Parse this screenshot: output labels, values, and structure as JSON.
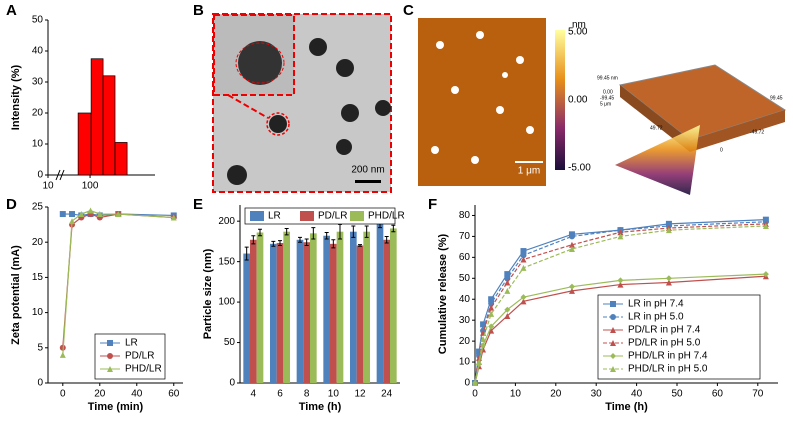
{
  "panel_labels": [
    "A",
    "B",
    "C",
    "D",
    "E",
    "F"
  ],
  "images": {
    "b_scale": "200 nm",
    "c_scale": "1 μm",
    "c_colorbar_unit": "nm",
    "c_colorbar_ticks": [
      "5.00",
      "0.00",
      "-5.00"
    ],
    "c_3d_labels": [
      "99.45 nm",
      "0.00",
      "-99.45",
      "5 μm",
      "49.72",
      "-49.72",
      "0",
      "99.45"
    ]
  },
  "chart_data": [
    {
      "type": "histogram",
      "ylabel": "Intensity (%)",
      "bins": [
        52,
        106,
        204,
        392,
        760
      ],
      "values": [
        20,
        37.5,
        32,
        10.5
      ],
      "color": "#ff0000",
      "xlim": [
        10,
        3500
      ],
      "xticks": [
        10,
        100
      ],
      "log_x": true,
      "ylim": [
        0,
        50
      ],
      "yticks": [
        0,
        10,
        20,
        30,
        40,
        50
      ]
    },
    {
      "type": "line",
      "xlabel": "Time (min)",
      "ylabel": "Zeta potential (mA)",
      "x": [
        0,
        5,
        10,
        15,
        20,
        30,
        60
      ],
      "xlim": [
        -8,
        65
      ],
      "xticks": [
        0,
        20,
        40,
        60
      ],
      "ylim": [
        0,
        25
      ],
      "yticks": [
        0,
        5,
        10,
        15,
        20,
        25
      ],
      "legend": "bottom-right",
      "series": [
        {
          "name": "LR",
          "color": "#4f81bd",
          "marker": "square",
          "values": [
            24,
            24,
            23.8,
            24,
            23.8,
            24,
            23.8
          ]
        },
        {
          "name": "PD/LR",
          "color": "#c0504d",
          "marker": "circle",
          "values": [
            5,
            22.5,
            23.5,
            24,
            23.5,
            24,
            23.5
          ]
        },
        {
          "name": "PHD/LR",
          "color": "#9bbb59",
          "marker": "triangle",
          "values": [
            4,
            23,
            24,
            24.5,
            24,
            24,
            23.5
          ]
        }
      ]
    },
    {
      "type": "bar",
      "xlabel": "Time (h)",
      "ylabel": "Particle size (nm)",
      "categories": [
        "4",
        "6",
        "8",
        "10",
        "12",
        "24"
      ],
      "ylim": [
        0,
        220
      ],
      "yticks": [
        0,
        50,
        100,
        150,
        200
      ],
      "legend": "top",
      "series": [
        {
          "name": "LR",
          "color": "#4f81bd",
          "values": [
            160,
            172,
            177,
            182,
            187,
            199
          ],
          "errors": [
            8,
            3,
            3,
            4,
            7,
            7
          ]
        },
        {
          "name": "PD/LR",
          "color": "#c0504d",
          "values": [
            177,
            173,
            174,
            172,
            170,
            177
          ],
          "errors": [
            5,
            3,
            4,
            5,
            1,
            4
          ]
        },
        {
          "name": "PHD/LR",
          "color": "#9bbb59",
          "values": [
            186,
            187,
            185,
            187,
            187,
            191
          ],
          "errors": [
            4,
            4,
            7,
            9,
            7,
            4
          ]
        }
      ]
    },
    {
      "type": "line",
      "xlabel": "Time (h)",
      "ylabel": "Cumulative release (%)",
      "x": [
        0,
        1,
        2,
        4,
        8,
        12,
        24,
        36,
        48,
        72
      ],
      "xlim": [
        0,
        75
      ],
      "xticks": [
        0,
        10,
        20,
        30,
        40,
        50,
        60,
        70
      ],
      "ylim": [
        0,
        85
      ],
      "yticks": [
        0,
        10,
        20,
        30,
        40,
        50,
        60,
        70,
        80
      ],
      "legend": "right",
      "series": [
        {
          "name": "LR in pH 7.4",
          "color": "#4f81bd",
          "marker": "square",
          "dash": false,
          "values": [
            0,
            15,
            28,
            40,
            52,
            63,
            71,
            73,
            76,
            78
          ]
        },
        {
          "name": "LR in pH 5.0",
          "color": "#4f81bd",
          "marker": "circle",
          "dash": true,
          "values": [
            0,
            13,
            25,
            38,
            50,
            61,
            70,
            73,
            75,
            77
          ]
        },
        {
          "name": "PD/LR in pH 7.4",
          "color": "#c0504d",
          "marker": "triangle",
          "dash": false,
          "values": [
            0,
            8,
            16,
            25,
            32,
            39,
            44,
            47,
            48,
            51
          ]
        },
        {
          "name": "PD/LR in pH 5.0",
          "color": "#c0504d",
          "marker": "triangle",
          "dash": true,
          "values": [
            0,
            12,
            24,
            36,
            48,
            59,
            66,
            72,
            74,
            76
          ]
        },
        {
          "name": "PHD/LR in pH 7.4",
          "color": "#9bbb59",
          "marker": "diamond",
          "dash": false,
          "values": [
            0,
            9,
            18,
            27,
            35,
            41,
            46,
            49,
            50,
            52
          ]
        },
        {
          "name": "PHD/LR in pH 5.0",
          "color": "#9bbb59",
          "marker": "triangle",
          "dash": true,
          "values": [
            0,
            10,
            21,
            33,
            44,
            55,
            64,
            70,
            73,
            75
          ]
        }
      ]
    }
  ]
}
